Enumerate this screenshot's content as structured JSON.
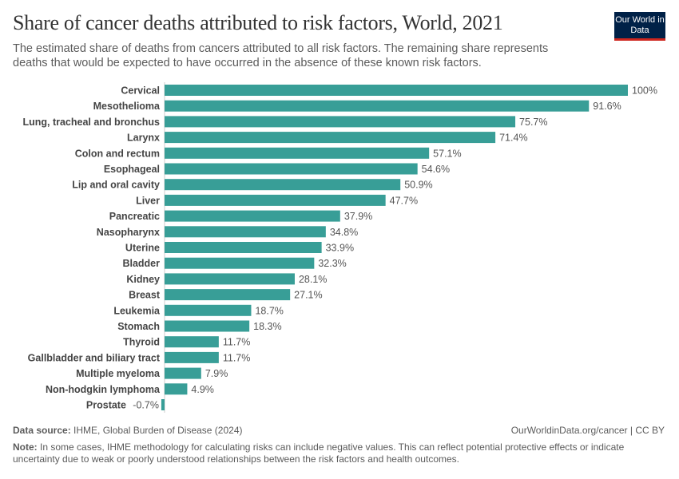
{
  "header": {
    "title": "Share of cancer deaths attributed to risk factors, World, 2021",
    "subtitle": "The estimated share of deaths from cancers attributed to all risk factors. The remaining share represents deaths that would be expected to have occurred in the absence of these known risk factors.",
    "logo_text": "Our World in Data"
  },
  "chart_data": {
    "type": "bar",
    "orientation": "horizontal",
    "unit": "%",
    "bar_color": "#389e97",
    "categories": [
      "Cervical",
      "Mesothelioma",
      "Lung, tracheal and bronchus",
      "Larynx",
      "Colon and rectum",
      "Esophageal",
      "Lip and oral cavity",
      "Liver",
      "Pancreatic",
      "Nasopharynx",
      "Uterine",
      "Bladder",
      "Kidney",
      "Breast",
      "Leukemia",
      "Stomach",
      "Thyroid",
      "Gallbladder and biliary tract",
      "Multiple myeloma",
      "Non-hodgkin lymphoma",
      "Prostate"
    ],
    "values": [
      100,
      91.6,
      75.7,
      71.4,
      57.1,
      54.6,
      50.9,
      47.7,
      37.9,
      34.8,
      33.9,
      32.3,
      28.1,
      27.1,
      18.7,
      18.3,
      11.7,
      11.7,
      7.9,
      4.9,
      -0.7
    ],
    "labels": [
      "100%",
      "91.6%",
      "75.7%",
      "71.4%",
      "57.1%",
      "54.6%",
      "50.9%",
      "47.7%",
      "37.9%",
      "34.8%",
      "33.9%",
      "32.3%",
      "28.1%",
      "27.1%",
      "18.7%",
      "18.3%",
      "11.7%",
      "11.7%",
      "7.9%",
      "4.9%",
      "-0.7%"
    ],
    "xlim": [
      -0.7,
      100
    ],
    "grid": false
  },
  "footer": {
    "source_label": "Data source:",
    "source": "IHME, Global Burden of Disease (2024)",
    "url": "OurWorldinData.org/cancer | CC BY",
    "note_label": "Note:",
    "note": "In some cases, IHME methodology for calculating risks can include negative values. This can reflect potential protective effects or indicate uncertainty due to weak or poorly understood relationships between the risk factors and health outcomes."
  }
}
